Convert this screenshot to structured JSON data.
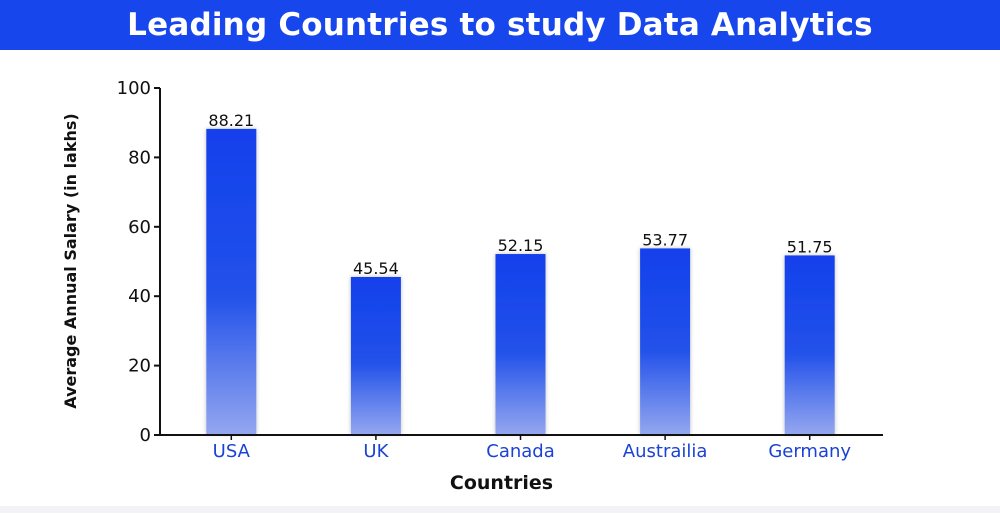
{
  "banner": {
    "title": "Leading Countries to study Data Analytics"
  },
  "colors": {
    "banner": "#1747ec",
    "bar_top": "#1240ec",
    "bar_bottom": "#8fa3ef",
    "category_text": "#1a43d6"
  },
  "chart_data": {
    "type": "bar",
    "title": "Leading Countries to study Data Analytics",
    "categories": [
      "USA",
      "UK",
      "Canada",
      "Austrailia",
      "Germany"
    ],
    "values": [
      88.21,
      45.54,
      52.15,
      53.77,
      51.75
    ],
    "value_labels": [
      "88.21",
      "45.54",
      "52.15",
      "53.77",
      "51.75"
    ],
    "xlabel": "Countries",
    "ylabel": "Average Annual Salary (in lakhs)",
    "ylim": [
      0,
      100
    ],
    "yticks": [
      0,
      20,
      40,
      60,
      80,
      100
    ],
    "grid": false,
    "legend": "none"
  }
}
